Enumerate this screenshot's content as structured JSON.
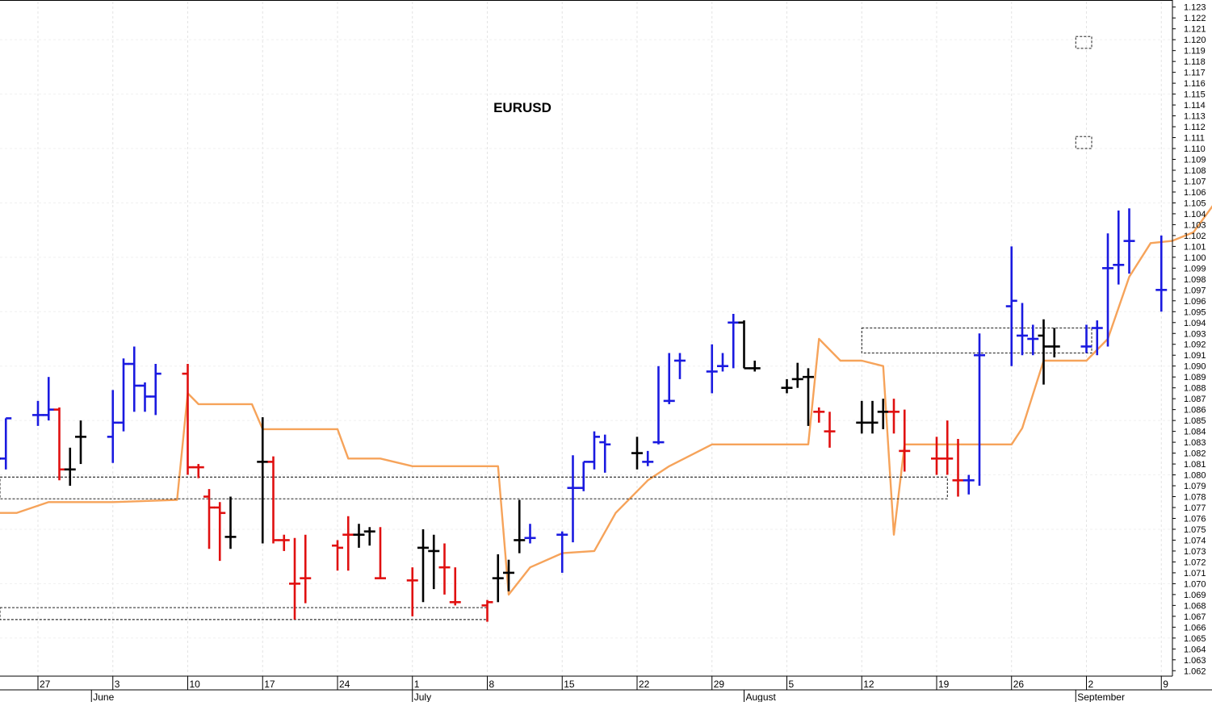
{
  "chart_data": {
    "type": "ohlc",
    "title": "EURUSD",
    "xlabel": "",
    "ylabel": "",
    "ylim": [
      1.0615,
      1.1235
    ],
    "x_range": [
      "2019-05-22",
      "2019-09-09"
    ],
    "y_ticks": [
      "1.062",
      "1.063",
      "1.064",
      "1.065",
      "1.066",
      "1.067",
      "1.068",
      "1.069",
      "1.070",
      "1.071",
      "1.072",
      "1.073",
      "1.074",
      "1.075",
      "1.076",
      "1.077",
      "1.078",
      "1.079",
      "1.080",
      "1.081",
      "1.082",
      "1.083",
      "1.084",
      "1.085",
      "1.086",
      "1.087",
      "1.088",
      "1.089",
      "1.090",
      "1.091",
      "1.092",
      "1.093",
      "1.094",
      "1.095",
      "1.096",
      "1.097",
      "1.098",
      "1.099",
      "1.100",
      "1.101",
      "1.102",
      "1.103",
      "1.104",
      "1.105",
      "1.106",
      "1.107",
      "1.108",
      "1.109",
      "1.110",
      "1.111",
      "1.112",
      "1.113",
      "1.114",
      "1.115",
      "1.116",
      "1.117",
      "1.118",
      "1.119",
      "1.120",
      "1.121",
      "1.122",
      "1.123"
    ],
    "x_ticks": [
      {
        "date": "2019-05-27",
        "label": "27"
      },
      {
        "date": "2019-06-03",
        "label": "3"
      },
      {
        "date": "2019-06-10",
        "label": "10"
      },
      {
        "date": "2019-06-17",
        "label": "17"
      },
      {
        "date": "2019-06-24",
        "label": "24"
      },
      {
        "date": "2019-07-01",
        "label": "1"
      },
      {
        "date": "2019-07-08",
        "label": "8"
      },
      {
        "date": "2019-07-15",
        "label": "15"
      },
      {
        "date": "2019-07-22",
        "label": "22"
      },
      {
        "date": "2019-07-29",
        "label": "29"
      },
      {
        "date": "2019-08-05",
        "label": "5"
      },
      {
        "date": "2019-08-12",
        "label": "12"
      },
      {
        "date": "2019-08-19",
        "label": "19"
      },
      {
        "date": "2019-08-26",
        "label": "26"
      },
      {
        "date": "2019-09-02",
        "label": "2"
      },
      {
        "date": "2019-09-09",
        "label": "9"
      }
    ],
    "month_labels": [
      {
        "date": "2019-06-01",
        "label": "June"
      },
      {
        "date": "2019-07-01",
        "label": "July"
      },
      {
        "date": "2019-08-01",
        "label": "August"
      },
      {
        "date": "2019-09-01",
        "label": "September"
      }
    ],
    "grid": true,
    "bar_colors": {
      "up": "#1a1ae0",
      "down": "#e01010",
      "neutral": "#000000"
    },
    "bars": [
      {
        "date": "2019-05-22",
        "open": 1.0825,
        "high": 1.0848,
        "low": 1.0808,
        "close": 1.0825,
        "color": "neutral"
      },
      {
        "date": "2019-05-23",
        "open": 1.0815,
        "high": 1.0862,
        "low": 1.0805,
        "close": 1.0815,
        "color": "neutral"
      },
      {
        "date": "2019-05-24",
        "open": 1.0815,
        "high": 1.0852,
        "low": 1.0805,
        "close": 1.0852,
        "color": "up"
      },
      {
        "date": "2019-05-27",
        "open": 1.0855,
        "high": 1.0868,
        "low": 1.0845,
        "close": 1.0855,
        "color": "up"
      },
      {
        "date": "2019-05-28",
        "open": 1.0855,
        "high": 1.089,
        "low": 1.085,
        "close": 1.086,
        "color": "up"
      },
      {
        "date": "2019-05-29",
        "open": 1.086,
        "high": 1.0862,
        "low": 1.0795,
        "close": 1.0805,
        "color": "down"
      },
      {
        "date": "2019-05-30",
        "open": 1.0805,
        "high": 1.0825,
        "low": 1.079,
        "close": 1.0805,
        "color": "neutral"
      },
      {
        "date": "2019-05-31",
        "open": 1.0835,
        "high": 1.085,
        "low": 1.081,
        "close": 1.0835,
        "color": "neutral"
      },
      {
        "date": "2019-06-03",
        "open": 1.0835,
        "high": 1.0878,
        "low": 1.0811,
        "close": 1.0848,
        "color": "up"
      },
      {
        "date": "2019-06-04",
        "open": 1.0848,
        "high": 1.0907,
        "low": 1.084,
        "close": 1.0902,
        "color": "up"
      },
      {
        "date": "2019-06-05",
        "open": 1.0902,
        "high": 1.0918,
        "low": 1.0858,
        "close": 1.0882,
        "color": "up"
      },
      {
        "date": "2019-06-06",
        "open": 1.0882,
        "high": 1.0885,
        "low": 1.0858,
        "close": 1.0872,
        "color": "up"
      },
      {
        "date": "2019-06-07",
        "open": 1.0872,
        "high": 1.0902,
        "low": 1.0855,
        "close": 1.0893,
        "color": "up"
      },
      {
        "date": "2019-06-10",
        "open": 1.0893,
        "high": 1.0902,
        "low": 1.08,
        "close": 1.0807,
        "color": "down"
      },
      {
        "date": "2019-06-11",
        "open": 1.0807,
        "high": 1.081,
        "low": 1.0797,
        "close": 1.0807,
        "color": "down"
      },
      {
        "date": "2019-06-12",
        "open": 1.078,
        "high": 1.0787,
        "low": 1.0732,
        "close": 1.077,
        "color": "down"
      },
      {
        "date": "2019-06-13",
        "open": 1.077,
        "high": 1.0775,
        "low": 1.0721,
        "close": 1.0765,
        "color": "down"
      },
      {
        "date": "2019-06-14",
        "open": 1.0743,
        "high": 1.078,
        "low": 1.0732,
        "close": 1.0743,
        "color": "neutral"
      },
      {
        "date": "2019-06-17",
        "open": 1.0812,
        "high": 1.0853,
        "low": 1.0737,
        "close": 1.0812,
        "color": "neutral"
      },
      {
        "date": "2019-06-18",
        "open": 1.0812,
        "high": 1.0817,
        "low": 1.0737,
        "close": 1.074,
        "color": "down"
      },
      {
        "date": "2019-06-19",
        "open": 1.074,
        "high": 1.0745,
        "low": 1.073,
        "close": 1.074,
        "color": "down"
      },
      {
        "date": "2019-06-20",
        "open": 1.07,
        "high": 1.0742,
        "low": 1.0667,
        "close": 1.07,
        "color": "down"
      },
      {
        "date": "2019-06-21",
        "open": 1.0705,
        "high": 1.0745,
        "low": 1.0682,
        "close": 1.0705,
        "color": "down"
      },
      {
        "date": "2019-06-24",
        "open": 1.0735,
        "high": 1.074,
        "low": 1.0712,
        "close": 1.0733,
        "color": "down"
      },
      {
        "date": "2019-06-25",
        "open": 1.0745,
        "high": 1.0762,
        "low": 1.0712,
        "close": 1.0745,
        "color": "down"
      },
      {
        "date": "2019-06-26",
        "open": 1.0745,
        "high": 1.0755,
        "low": 1.0733,
        "close": 1.0745,
        "color": "neutral"
      },
      {
        "date": "2019-06-27",
        "open": 1.0748,
        "high": 1.0752,
        "low": 1.0735,
        "close": 1.0748,
        "color": "neutral"
      },
      {
        "date": "2019-06-28",
        "open": 1.0705,
        "high": 1.0752,
        "low": 1.0705,
        "close": 1.0705,
        "color": "down"
      },
      {
        "date": "2019-07-01",
        "open": 1.0703,
        "high": 1.0715,
        "low": 1.067,
        "close": 1.0703,
        "color": "down"
      },
      {
        "date": "2019-07-02",
        "open": 1.0733,
        "high": 1.075,
        "low": 1.0683,
        "close": 1.0733,
        "color": "neutral"
      },
      {
        "date": "2019-07-03",
        "open": 1.073,
        "high": 1.0745,
        "low": 1.0695,
        "close": 1.073,
        "color": "neutral"
      },
      {
        "date": "2019-07-04",
        "open": 1.0715,
        "high": 1.0737,
        "low": 1.069,
        "close": 1.0715,
        "color": "down"
      },
      {
        "date": "2019-07-05",
        "open": 1.0683,
        "high": 1.0715,
        "low": 1.068,
        "close": 1.0683,
        "color": "down"
      },
      {
        "date": "2019-07-08",
        "open": 1.068,
        "high": 1.0685,
        "low": 1.0665,
        "close": 1.0683,
        "color": "down"
      },
      {
        "date": "2019-07-09",
        "open": 1.0705,
        "high": 1.0727,
        "low": 1.0683,
        "close": 1.0705,
        "color": "neutral"
      },
      {
        "date": "2019-07-10",
        "open": 1.071,
        "high": 1.0722,
        "low": 1.0693,
        "close": 1.071,
        "color": "neutral"
      },
      {
        "date": "2019-07-11",
        "open": 1.074,
        "high": 1.0777,
        "low": 1.0728,
        "close": 1.074,
        "color": "neutral"
      },
      {
        "date": "2019-07-12",
        "open": 1.0742,
        "high": 1.0755,
        "low": 1.0737,
        "close": 1.0742,
        "color": "up"
      },
      {
        "date": "2019-07-15",
        "open": 1.0745,
        "high": 1.0748,
        "low": 1.071,
        "close": 1.0745,
        "color": "up"
      },
      {
        "date": "2019-07-16",
        "open": 1.0788,
        "high": 1.0818,
        "low": 1.0738,
        "close": 1.0788,
        "color": "up"
      },
      {
        "date": "2019-07-17",
        "open": 1.0788,
        "high": 1.0812,
        "low": 1.0785,
        "close": 1.0812,
        "color": "up"
      },
      {
        "date": "2019-07-18",
        "open": 1.0812,
        "high": 1.084,
        "low": 1.0805,
        "close": 1.0835,
        "color": "up"
      },
      {
        "date": "2019-07-19",
        "open": 1.083,
        "high": 1.0837,
        "low": 1.0802,
        "close": 1.0828,
        "color": "up"
      },
      {
        "date": "2019-07-22",
        "open": 1.082,
        "high": 1.0835,
        "low": 1.0805,
        "close": 1.082,
        "color": "neutral"
      },
      {
        "date": "2019-07-23",
        "open": 1.0812,
        "high": 1.0822,
        "low": 1.0808,
        "close": 1.0812,
        "color": "up"
      },
      {
        "date": "2019-07-24",
        "open": 1.083,
        "high": 1.09,
        "low": 1.0828,
        "close": 1.083,
        "color": "up"
      },
      {
        "date": "2019-07-25",
        "open": 1.0868,
        "high": 1.0912,
        "low": 1.0865,
        "close": 1.0868,
        "color": "up"
      },
      {
        "date": "2019-07-26",
        "open": 1.0905,
        "high": 1.0912,
        "low": 1.0888,
        "close": 1.0905,
        "color": "up"
      },
      {
        "date": "2019-07-29",
        "open": 1.0895,
        "high": 1.092,
        "low": 1.0875,
        "close": 1.0895,
        "color": "up"
      },
      {
        "date": "2019-07-30",
        "open": 1.09,
        "high": 1.0912,
        "low": 1.0895,
        "close": 1.09,
        "color": "up"
      },
      {
        "date": "2019-07-31",
        "open": 1.094,
        "high": 1.0948,
        "low": 1.0898,
        "close": 1.094,
        "color": "up"
      },
      {
        "date": "2019-08-01",
        "open": 1.094,
        "high": 1.0942,
        "low": 1.0898,
        "close": 1.0898,
        "color": "neutral"
      },
      {
        "date": "2019-08-02",
        "open": 1.0898,
        "high": 1.0905,
        "low": 1.0895,
        "close": 1.0898,
        "color": "neutral"
      },
      {
        "date": "2019-08-05",
        "open": 1.088,
        "high": 1.0888,
        "low": 1.0875,
        "close": 1.088,
        "color": "neutral"
      },
      {
        "date": "2019-08-06",
        "open": 1.0888,
        "high": 1.0903,
        "low": 1.088,
        "close": 1.0888,
        "color": "neutral"
      },
      {
        "date": "2019-08-07",
        "open": 1.089,
        "high": 1.0898,
        "low": 1.0845,
        "close": 1.089,
        "color": "neutral"
      },
      {
        "date": "2019-08-08",
        "open": 1.0858,
        "high": 1.0862,
        "low": 1.0848,
        "close": 1.0858,
        "color": "down"
      },
      {
        "date": "2019-08-09",
        "open": 1.084,
        "high": 1.0858,
        "low": 1.0825,
        "close": 1.084,
        "color": "down"
      },
      {
        "date": "2019-08-12",
        "open": 1.0848,
        "high": 1.0868,
        "low": 1.0838,
        "close": 1.0848,
        "color": "neutral"
      },
      {
        "date": "2019-08-13",
        "open": 1.0848,
        "high": 1.0868,
        "low": 1.0838,
        "close": 1.0848,
        "color": "neutral"
      },
      {
        "date": "2019-08-14",
        "open": 1.0858,
        "high": 1.087,
        "low": 1.0842,
        "close": 1.0858,
        "color": "neutral"
      },
      {
        "date": "2019-08-15",
        "open": 1.0858,
        "high": 1.087,
        "low": 1.0838,
        "close": 1.0858,
        "color": "down"
      },
      {
        "date": "2019-08-16",
        "open": 1.0822,
        "high": 1.086,
        "low": 1.0803,
        "close": 1.0822,
        "color": "down"
      },
      {
        "date": "2019-08-19",
        "open": 1.0815,
        "high": 1.0835,
        "low": 1.08,
        "close": 1.0815,
        "color": "down"
      },
      {
        "date": "2019-08-20",
        "open": 1.0815,
        "high": 1.085,
        "low": 1.08,
        "close": 1.0815,
        "color": "down"
      },
      {
        "date": "2019-08-21",
        "open": 1.0795,
        "high": 1.0833,
        "low": 1.078,
        "close": 1.0795,
        "color": "down"
      },
      {
        "date": "2019-08-22",
        "open": 1.0795,
        "high": 1.08,
        "low": 1.0782,
        "close": 1.0795,
        "color": "up"
      },
      {
        "date": "2019-08-23",
        "open": 1.091,
        "high": 1.093,
        "low": 1.079,
        "close": 1.091,
        "color": "up"
      },
      {
        "date": "2019-08-26",
        "open": 1.0955,
        "high": 1.101,
        "low": 1.09,
        "close": 1.096,
        "color": "up"
      },
      {
        "date": "2019-08-27",
        "open": 1.0928,
        "high": 1.0958,
        "low": 1.091,
        "close": 1.0928,
        "color": "up"
      },
      {
        "date": "2019-08-28",
        "open": 1.0925,
        "high": 1.0938,
        "low": 1.091,
        "close": 1.0925,
        "color": "up"
      },
      {
        "date": "2019-08-29",
        "open": 1.0928,
        "high": 1.0943,
        "low": 1.0883,
        "close": 1.0918,
        "color": "neutral"
      },
      {
        "date": "2019-08-30",
        "open": 1.0918,
        "high": 1.0935,
        "low": 1.0908,
        "close": 1.0918,
        "color": "neutral"
      },
      {
        "date": "2019-09-02",
        "open": 1.0918,
        "high": 1.0938,
        "low": 1.0912,
        "close": 1.0918,
        "color": "up"
      },
      {
        "date": "2019-09-03",
        "open": 1.0935,
        "high": 1.0942,
        "low": 1.091,
        "close": 1.0935,
        "color": "up"
      },
      {
        "date": "2019-09-04",
        "open": 1.099,
        "high": 1.1022,
        "low": 1.0918,
        "close": 1.099,
        "color": "up"
      },
      {
        "date": "2019-09-05",
        "open": 1.0993,
        "high": 1.1043,
        "low": 1.0975,
        "close": 1.0993,
        "color": "up"
      },
      {
        "date": "2019-09-06",
        "open": 1.1015,
        "high": 1.1045,
        "low": 1.0985,
        "close": 1.1015,
        "color": "up"
      },
      {
        "date": "2019-09-09",
        "open": 1.097,
        "high": 1.102,
        "low": 1.095,
        "close": 1.097,
        "color": "up"
      }
    ],
    "indicator": {
      "color": "#f6a35a",
      "points": [
        [
          "2019-05-20",
          1.0765
        ],
        [
          "2019-05-25",
          1.0765
        ],
        [
          "2019-05-28",
          1.0775
        ],
        [
          "2019-06-03",
          1.0775
        ],
        [
          "2019-06-09",
          1.0777
        ],
        [
          "2019-06-10",
          1.0875
        ],
        [
          "2019-06-11",
          1.0865
        ],
        [
          "2019-06-16",
          1.0865
        ],
        [
          "2019-06-17",
          1.0842
        ],
        [
          "2019-06-20",
          1.0842
        ],
        [
          "2019-06-24",
          1.0842
        ],
        [
          "2019-06-25",
          1.0815
        ],
        [
          "2019-06-28",
          1.0815
        ],
        [
          "2019-07-01",
          1.0808
        ],
        [
          "2019-07-05",
          1.0808
        ],
        [
          "2019-07-08",
          1.0808
        ],
        [
          "2019-07-09",
          1.0808
        ],
        [
          "2019-07-10",
          1.069
        ],
        [
          "2019-07-12",
          1.0715
        ],
        [
          "2019-07-15",
          1.0728
        ],
        [
          "2019-07-18",
          1.073
        ],
        [
          "2019-07-20",
          1.0765
        ],
        [
          "2019-07-23",
          1.0795
        ],
        [
          "2019-07-25",
          1.0808
        ],
        [
          "2019-07-29",
          1.0828
        ],
        [
          "2019-08-02",
          1.0828
        ],
        [
          "2019-08-05",
          1.0828
        ],
        [
          "2019-08-07",
          1.0828
        ],
        [
          "2019-08-08",
          1.0925
        ],
        [
          "2019-08-10",
          1.0905
        ],
        [
          "2019-08-12",
          1.0905
        ],
        [
          "2019-08-14",
          1.09
        ],
        [
          "2019-08-15",
          1.0745
        ],
        [
          "2019-08-16",
          1.0828
        ],
        [
          "2019-08-20",
          1.0828
        ],
        [
          "2019-08-23",
          1.0828
        ],
        [
          "2019-08-26",
          1.0828
        ],
        [
          "2019-08-27",
          1.0843
        ],
        [
          "2019-08-29",
          1.0905
        ],
        [
          "2019-09-02",
          1.0905
        ],
        [
          "2019-09-04",
          1.0925
        ],
        [
          "2019-09-06",
          1.0982
        ],
        [
          "2019-09-08",
          1.1013
        ],
        [
          "2019-09-10",
          1.1015
        ],
        [
          "2019-09-12",
          1.1023
        ],
        [
          "2019-09-14",
          1.105
        ],
        [
          "2019-09-16",
          1.105
        ],
        [
          "2019-09-18",
          1.105
        ]
      ]
    },
    "boxes": [
      {
        "x1": "2019-05-20",
        "x2": "2019-07-08",
        "y1": 1.0678,
        "y2": 1.0667
      },
      {
        "x1": "2019-05-20",
        "x2": "2019-08-20",
        "y1": 1.0798,
        "y2": 1.0778
      },
      {
        "x1": "2019-08-12",
        "x2": "2019-09-09",
        "y1": 1.0935,
        "y2": 1.0912
      },
      {
        "x1": "2019-09-01",
        "x2": "2019-09-30",
        "y1": 1.1203,
        "y2": 1.1192
      },
      {
        "x1": "2019-09-01",
        "x2": "2019-09-30",
        "y1": 1.1111,
        "y2": 1.11
      }
    ]
  }
}
